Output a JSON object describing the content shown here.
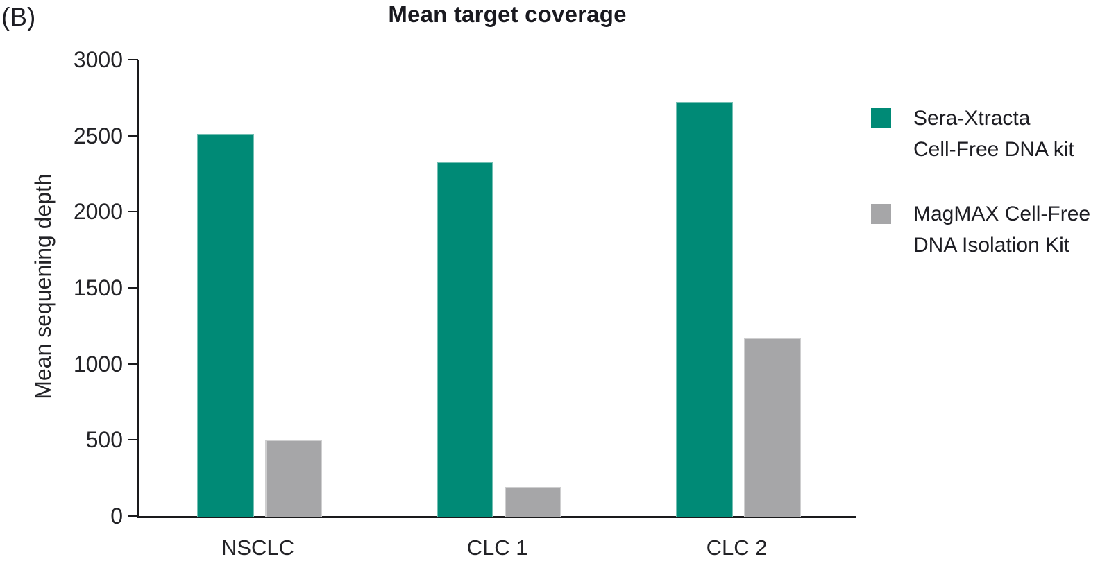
{
  "panel_label": "(B)",
  "chart_data": {
    "type": "bar",
    "title": "Mean target coverage",
    "xlabel": "",
    "ylabel": "Mean sequening depth",
    "categories": [
      "NSCLC",
      "CLC 1",
      "CLC 2"
    ],
    "series": [
      {
        "name": "Sera-Xtracta Cell-Free DNA kit",
        "color": "#008a76",
        "values": [
          2510,
          2330,
          2720
        ]
      },
      {
        "name": "MagMAX Cell-Free DNA Isolation Kit",
        "color": "#a6a6a8",
        "values": [
          500,
          190,
          1170
        ]
      }
    ],
    "ylim": [
      0,
      3000
    ],
    "yticks": [
      0,
      500,
      1000,
      1500,
      2000,
      2500,
      3000
    ],
    "grid": false,
    "legend_position": "right"
  },
  "legend": {
    "items": [
      {
        "lines": [
          "Sera-Xtracta",
          "Cell-Free DNA kit"
        ],
        "color": "#008a76"
      },
      {
        "lines": [
          "MagMAX Cell-Free",
          "DNA Isolation Kit"
        ],
        "color": "#a6a6a8"
      }
    ]
  }
}
